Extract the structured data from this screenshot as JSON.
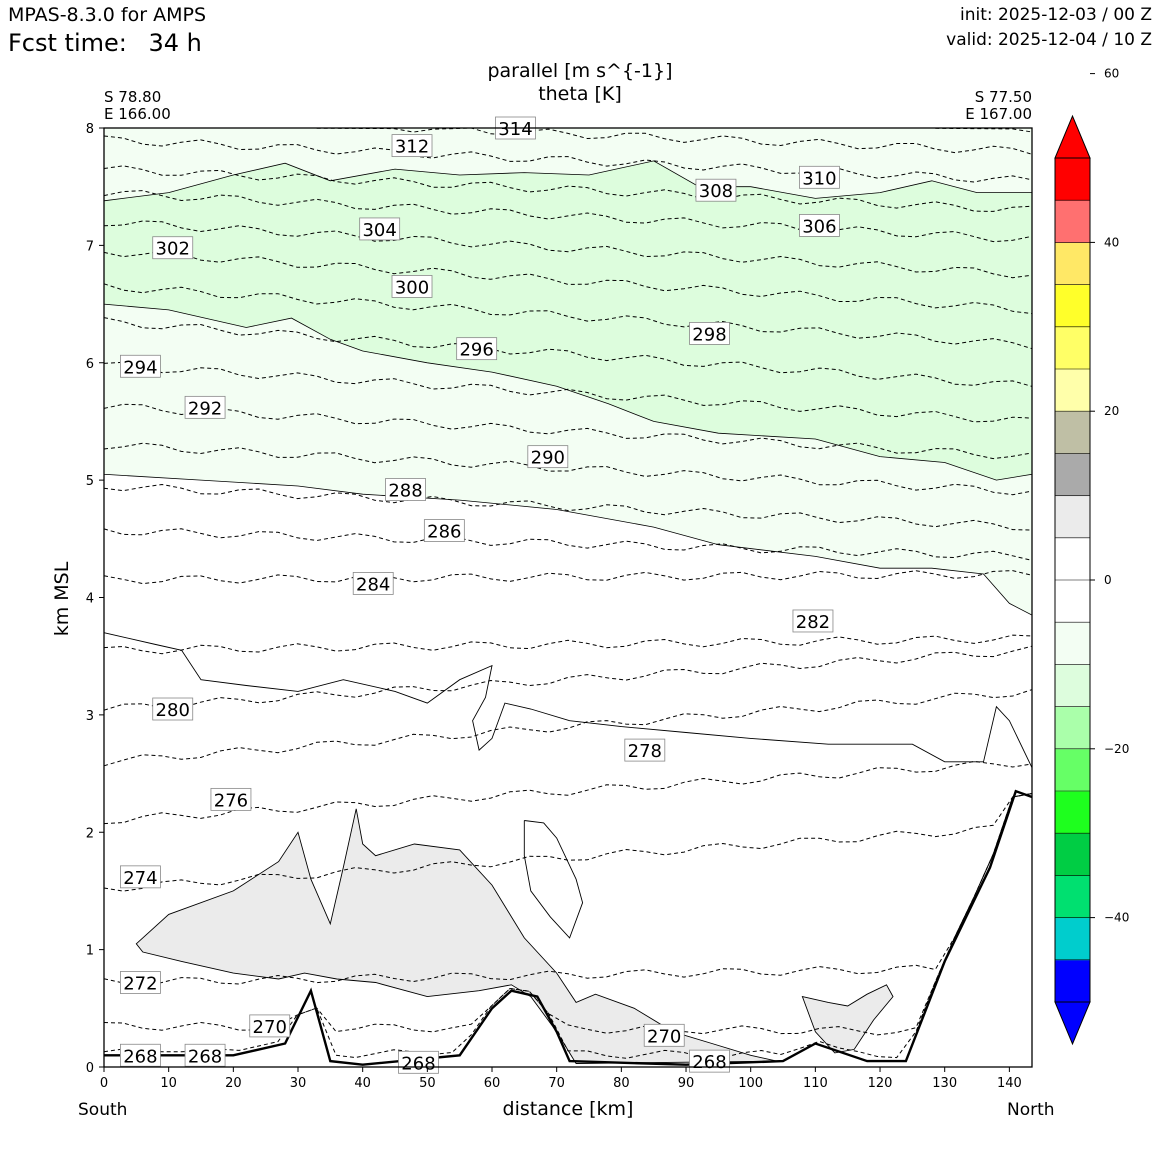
{
  "header": {
    "model": "MPAS-8.3.0 for AMPS",
    "fcst_label": "Fcst time:",
    "fcst_value": "34 h",
    "init": "init: 2025-12-03 / 00 Z",
    "valid": "valid: 2025-12-04 / 10 Z"
  },
  "titles": {
    "line1": "parallel [m s^{-1}]",
    "line2": "theta [K]"
  },
  "endpoints": {
    "left_lat": "S 78.80",
    "left_lon": "E 166.00",
    "right_lat": "S 77.50",
    "right_lon": "E 167.00",
    "left_dir": "South",
    "right_dir": "North"
  },
  "chart_data": {
    "type": "contour",
    "title": "parallel [m s^{-1}] / theta [K]",
    "xlabel": "distance [km]",
    "ylabel": "km MSL",
    "xlim": [
      0,
      143.5
    ],
    "ylim": [
      0,
      8
    ],
    "xticks": [
      0,
      10,
      20,
      30,
      40,
      50,
      60,
      70,
      80,
      90,
      100,
      110,
      120,
      130,
      140
    ],
    "yticks": [
      0,
      1,
      2,
      3,
      4,
      5,
      6,
      7,
      8
    ],
    "theta_levels": [
      268,
      270,
      272,
      274,
      276,
      278,
      280,
      282,
      284,
      286,
      288,
      290,
      292,
      294,
      296,
      298,
      300,
      302,
      304,
      306,
      308,
      310,
      312,
      314
    ],
    "theta_heights": [
      [
        268,
        0.12,
        0.1
      ],
      [
        270,
        0.35,
        0.3
      ],
      [
        272,
        0.72,
        0.85
      ],
      [
        274,
        1.52,
        2.05
      ],
      [
        276,
        2.1,
        2.6
      ],
      [
        278,
        2.6,
        3.2
      ],
      [
        280,
        3.05,
        3.55
      ],
      [
        282,
        3.55,
        3.65
      ],
      [
        284,
        4.15,
        4.2
      ],
      [
        286,
        4.57,
        4.35
      ],
      [
        288,
        4.95,
        4.6
      ],
      [
        290,
        5.3,
        4.9
      ],
      [
        292,
        5.63,
        5.2
      ],
      [
        294,
        5.98,
        5.5
      ],
      [
        296,
        6.35,
        5.8
      ],
      [
        298,
        6.65,
        6.15
      ],
      [
        300,
        6.95,
        6.45
      ],
      [
        302,
        7.2,
        6.75
      ],
      [
        304,
        7.45,
        7.05
      ],
      [
        306,
        7.65,
        7.3
      ],
      [
        308,
        7.9,
        7.55
      ],
      [
        310,
        8.1,
        7.8
      ],
      [
        312,
        8.3,
        8.0
      ],
      [
        314,
        8.5,
        8.2
      ]
    ],
    "theta_label_positions": [
      [
        268,
        3,
        0.1
      ],
      [
        268,
        13,
        0.1
      ],
      [
        268,
        46,
        0.04
      ],
      [
        268,
        91,
        0.05
      ],
      [
        270,
        23,
        0.35
      ],
      [
        270,
        84,
        0.27
      ],
      [
        272,
        3,
        0.72
      ],
      [
        274,
        3,
        1.62
      ],
      [
        276,
        17,
        2.28
      ],
      [
        278,
        81,
        2.7
      ],
      [
        280,
        8,
        3.05
      ],
      [
        282,
        107,
        3.8
      ],
      [
        284,
        39,
        4.12
      ],
      [
        286,
        50,
        4.57
      ],
      [
        288,
        44,
        4.92
      ],
      [
        290,
        66,
        5.2
      ],
      [
        292,
        13,
        5.62
      ],
      [
        294,
        3,
        5.97
      ],
      [
        296,
        55,
        6.12
      ],
      [
        298,
        91,
        6.25
      ],
      [
        300,
        45,
        6.65
      ],
      [
        302,
        8,
        6.98
      ],
      [
        304,
        40,
        7.14
      ],
      [
        306,
        108,
        7.17
      ],
      [
        308,
        92,
        7.47
      ],
      [
        310,
        108,
        7.58
      ],
      [
        312,
        45,
        7.85
      ],
      [
        314,
        61,
        8.0
      ]
    ],
    "parallel_fill_regions": [
      {
        "range": [
          -15,
          -10
        ],
        "color": "#ddfddd",
        "desc": "upper band, 6.5 to 7.4 km south rising tilt"
      },
      {
        "range": [
          -10,
          -5
        ],
        "color": "#f3fef3",
        "desc": "4.3 to 8 km layer"
      },
      {
        "range": [
          10,
          15
        ],
        "color": "#ebebeb",
        "desc": "low-level wedge near 0 to 2 km"
      }
    ],
    "colorbar": {
      "ticks": [
        60,
        40,
        20,
        0,
        -20,
        -40
      ],
      "tick_labels": [
        "60",
        "40",
        "20",
        "0",
        "−20",
        "−40"
      ],
      "range": [
        -50,
        50
      ],
      "colors": [
        "#0000ff",
        "#00cdcd",
        "#00e070",
        "#00cd44",
        "#1eff1e",
        "#66ff66",
        "#aaffaa",
        "#ddfddd",
        "#f3fef3",
        "#ffffff",
        "#ffffff",
        "#ebebeb",
        "#aaaaaa",
        "#bfbfa5",
        "#ffffaa",
        "#ffff66",
        "#ffff2a",
        "#ffe866",
        "#ff7070",
        "#ff0000"
      ]
    },
    "terrain_km": [
      [
        0,
        0.1
      ],
      [
        20,
        0.1
      ],
      [
        28,
        0.2
      ],
      [
        32,
        0.65
      ],
      [
        35,
        0.05
      ],
      [
        40,
        0.02
      ],
      [
        55,
        0.1
      ],
      [
        60,
        0.5
      ],
      [
        63,
        0.65
      ],
      [
        67,
        0.6
      ],
      [
        70,
        0.3
      ],
      [
        72,
        0.05
      ],
      [
        90,
        0.02
      ],
      [
        105,
        0.05
      ],
      [
        110,
        0.2
      ],
      [
        118,
        0.05
      ],
      [
        124,
        0.05
      ],
      [
        130,
        0.9
      ],
      [
        137,
        1.7
      ],
      [
        141,
        2.35
      ],
      [
        143.5,
        2.3
      ]
    ]
  }
}
